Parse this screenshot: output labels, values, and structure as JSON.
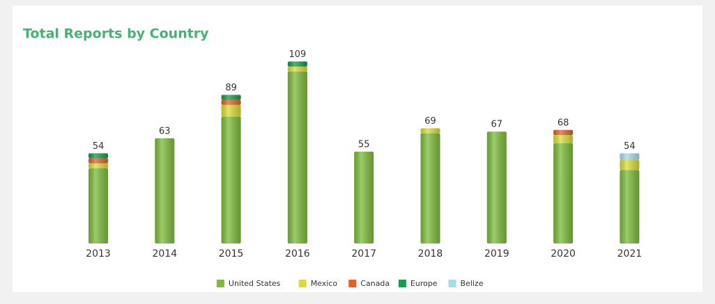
{
  "chart_data": {
    "type": "stacked_bar",
    "title": "Total Reports by Country",
    "categories": [
      "2013",
      "2014",
      "2015",
      "2016",
      "2017",
      "2018",
      "2019",
      "2020",
      "2021"
    ],
    "series": [
      {
        "name": "United States",
        "color": "#7dbb3c",
        "values": [
          45,
          63,
          76,
          103,
          55,
          66,
          67,
          60,
          44
        ]
      },
      {
        "name": "Mexico",
        "color": "#d9db3a",
        "values": [
          3,
          0,
          7,
          3,
          0,
          3,
          0,
          5,
          6
        ]
      },
      {
        "name": "Canada",
        "color": "#e0622a",
        "values": [
          3,
          0,
          3,
          0,
          0,
          0,
          0,
          3,
          0
        ]
      },
      {
        "name": "Europe",
        "color": "#1a9a4a",
        "values": [
          3,
          0,
          3,
          3,
          0,
          0,
          0,
          0,
          0
        ]
      },
      {
        "name": "Belize",
        "color": "#a6dbe8",
        "values": [
          0,
          0,
          0,
          0,
          0,
          0,
          0,
          0,
          4
        ]
      }
    ],
    "totals": [
      54,
      63,
      89,
      109,
      55,
      69,
      67,
      68,
      54
    ],
    "ylim": [
      0,
      115
    ],
    "legend": "bottom"
  }
}
